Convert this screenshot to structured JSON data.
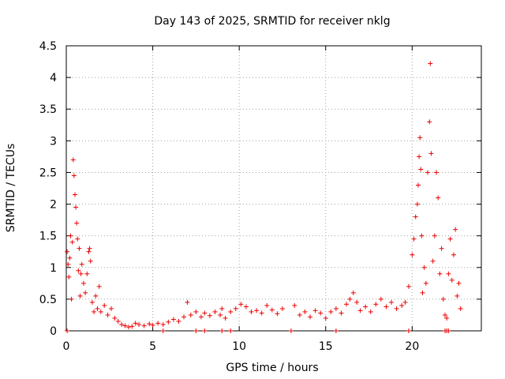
{
  "chart_data": {
    "type": "scatter",
    "title": "Day 143 of 2025, SRMTID for receiver nklg",
    "xlabel": "GPS time / hours",
    "ylabel": "SRMTID / TECUs",
    "xlim": [
      0,
      24
    ],
    "ylim": [
      0,
      4.5
    ],
    "grid": true,
    "marker": "plus",
    "color": "#ee0000",
    "x_ticks": [
      0,
      5,
      10,
      15,
      20
    ],
    "x_tick_labels": [
      "0",
      "5",
      "10",
      "15",
      "20"
    ],
    "y_ticks": [
      0,
      0.5,
      1,
      1.5,
      2,
      2.5,
      3,
      3.5,
      4,
      4.5
    ],
    "y_tick_labels": [
      "0",
      "0.5",
      "1",
      "1.5",
      "2",
      "2.5",
      "3",
      "3.5",
      "4",
      "4.5"
    ],
    "series": [
      {
        "name": "SRMTID",
        "points": [
          [
            0.05,
            1.25
          ],
          [
            0.1,
            1.05
          ],
          [
            0.15,
            0.85
          ],
          [
            0.2,
            1.15
          ],
          [
            0.25,
            1.5
          ],
          [
            0.3,
            0.5
          ],
          [
            0.35,
            1.4
          ],
          [
            0.4,
            2.7
          ],
          [
            0.45,
            2.45
          ],
          [
            0.5,
            2.15
          ],
          [
            0.55,
            1.95
          ],
          [
            0.6,
            1.7
          ],
          [
            0.65,
            1.45
          ],
          [
            0.7,
            0.95
          ],
          [
            0.75,
            1.3
          ],
          [
            0.8,
            0.55
          ],
          [
            0.85,
            0.9
          ],
          [
            0.9,
            1.05
          ],
          [
            1.0,
            0.75
          ],
          [
            1.1,
            0.6
          ],
          [
            1.2,
            0.9
          ],
          [
            1.3,
            1.25
          ],
          [
            1.35,
            1.3
          ],
          [
            1.4,
            1.1
          ],
          [
            1.5,
            0.45
          ],
          [
            1.6,
            0.3
          ],
          [
            1.7,
            0.55
          ],
          [
            1.8,
            0.35
          ],
          [
            1.9,
            0.7
          ],
          [
            2.0,
            0.3
          ],
          [
            2.2,
            0.4
          ],
          [
            2.4,
            0.25
          ],
          [
            2.6,
            0.35
          ],
          [
            2.8,
            0.2
          ],
          [
            3.0,
            0.15
          ],
          [
            3.2,
            0.1
          ],
          [
            3.4,
            0.08
          ],
          [
            3.6,
            0.06
          ],
          [
            3.8,
            0.07
          ],
          [
            4.0,
            0.12
          ],
          [
            4.2,
            0.1
          ],
          [
            4.5,
            0.08
          ],
          [
            4.8,
            0.11
          ],
          [
            5.0,
            0.09
          ],
          [
            5.3,
            0.12
          ],
          [
            5.6,
            0.1
          ],
          [
            5.9,
            0.14
          ],
          [
            6.2,
            0.18
          ],
          [
            6.5,
            0.15
          ],
          [
            6.8,
            0.22
          ],
          [
            7.0,
            0.45
          ],
          [
            7.2,
            0.25
          ],
          [
            7.5,
            0.3
          ],
          [
            7.8,
            0.22
          ],
          [
            8.0,
            0.28
          ],
          [
            8.3,
            0.24
          ],
          [
            8.6,
            0.3
          ],
          [
            8.9,
            0.25
          ],
          [
            9.0,
            0.35
          ],
          [
            9.2,
            0.2
          ],
          [
            9.5,
            0.3
          ],
          [
            9.8,
            0.35
          ],
          [
            10.1,
            0.42
          ],
          [
            10.4,
            0.38
          ],
          [
            10.7,
            0.3
          ],
          [
            11.0,
            0.32
          ],
          [
            11.3,
            0.28
          ],
          [
            11.6,
            0.4
          ],
          [
            11.9,
            0.33
          ],
          [
            12.2,
            0.27
          ],
          [
            12.5,
            0.35
          ],
          [
            13.2,
            0.4
          ],
          [
            13.5,
            0.25
          ],
          [
            13.8,
            0.3
          ],
          [
            14.1,
            0.22
          ],
          [
            14.4,
            0.32
          ],
          [
            14.7,
            0.28
          ],
          [
            15.0,
            0.2
          ],
          [
            15.3,
            0.3
          ],
          [
            15.6,
            0.35
          ],
          [
            15.9,
            0.28
          ],
          [
            16.2,
            0.42
          ],
          [
            16.4,
            0.5
          ],
          [
            16.6,
            0.6
          ],
          [
            16.8,
            0.45
          ],
          [
            17.0,
            0.32
          ],
          [
            17.3,
            0.38
          ],
          [
            17.6,
            0.3
          ],
          [
            17.9,
            0.42
          ],
          [
            18.2,
            0.5
          ],
          [
            18.5,
            0.38
          ],
          [
            18.8,
            0.45
          ],
          [
            19.1,
            0.35
          ],
          [
            19.4,
            0.4
          ],
          [
            19.6,
            0.45
          ],
          [
            19.8,
            0.7
          ],
          [
            20.0,
            1.2
          ],
          [
            20.1,
            1.45
          ],
          [
            20.2,
            1.8
          ],
          [
            20.3,
            2.0
          ],
          [
            20.35,
            2.3
          ],
          [
            20.4,
            2.75
          ],
          [
            20.45,
            3.05
          ],
          [
            20.5,
            2.55
          ],
          [
            20.55,
            1.5
          ],
          [
            20.6,
            0.6
          ],
          [
            20.7,
            1.0
          ],
          [
            20.8,
            0.75
          ],
          [
            20.9,
            2.5
          ],
          [
            21.0,
            3.3
          ],
          [
            21.05,
            4.22
          ],
          [
            21.1,
            2.8
          ],
          [
            21.2,
            1.1
          ],
          [
            21.3,
            1.5
          ],
          [
            21.4,
            2.5
          ],
          [
            21.5,
            2.1
          ],
          [
            21.6,
            0.9
          ],
          [
            21.7,
            1.3
          ],
          [
            21.8,
            0.5
          ],
          [
            21.9,
            0.25
          ],
          [
            22.0,
            0.2
          ],
          [
            22.1,
            0.9
          ],
          [
            22.2,
            1.45
          ],
          [
            22.3,
            0.8
          ],
          [
            22.4,
            1.2
          ],
          [
            22.5,
            1.6
          ],
          [
            22.6,
            0.55
          ],
          [
            22.7,
            0.75
          ],
          [
            22.8,
            0.35
          ]
        ]
      }
    ],
    "zero_points_x": [
      0.05,
      5.6,
      7.5,
      8.0,
      9.0,
      9.5,
      13.0,
      15.6,
      19.8,
      21.9,
      22.0,
      22.1
    ]
  }
}
